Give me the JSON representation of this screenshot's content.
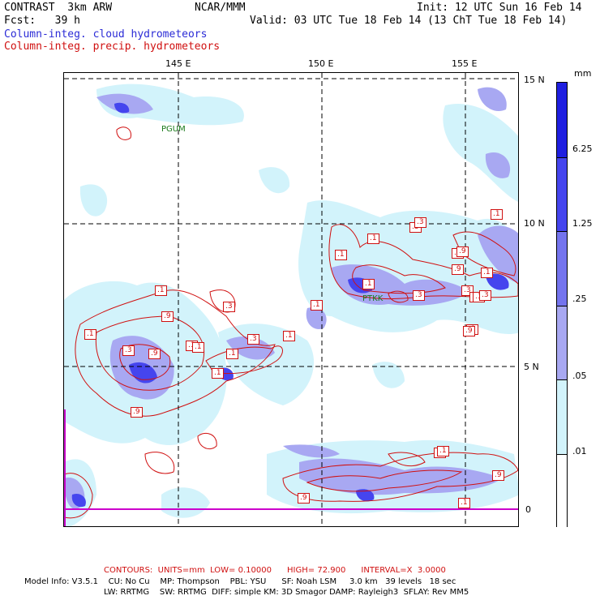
{
  "header": {
    "title": "CONTRAST  3km ARW",
    "org": "NCAR/MMM",
    "init": "Init: 12 UTC Sun 16 Feb 14",
    "fcst": "Fcst:   39 h",
    "valid": "Valid: 03 UTC Tue 18 Feb 14 (13 ChT Tue 18 Feb 14)",
    "field_cloud": "Column-integ. cloud hydrometeors",
    "field_precip": "Column-integ. precip. hydrometeors"
  },
  "map": {
    "lon_labels": [
      "145 E",
      "150 E",
      "155 E"
    ],
    "lat_labels": [
      "15 N",
      "10 N",
      "5 N",
      "0"
    ],
    "stations": [
      "PGUM",
      "PTKK"
    ],
    "contour_labels": [
      ".1",
      ".9",
      ".3",
      ".1",
      ".1",
      ".3",
      ".1",
      ".9",
      ".1",
      ".3",
      ".1",
      ".9",
      ".1",
      ".1",
      ".1",
      ".3",
      ".9",
      ".1",
      ".3",
      ".1",
      ".3",
      ".3",
      ".1",
      ".9",
      ".1",
      ".9",
      ".1",
      ".9",
      ".1",
      ".3",
      ".1",
      ".1",
      ".3",
      ".3",
      ".9",
      ".1"
    ]
  },
  "colorbar": {
    "units": "mm",
    "tick_labels": [
      "6.25",
      "1.25",
      ".25",
      ".05",
      ".01"
    ],
    "colors": [
      "#1f1fe0",
      "#4545ee",
      "#7474ee",
      "#a8a8f2",
      "#d2f3fb",
      "#ffffff"
    ]
  },
  "footer": {
    "contours": "CONTOURS:  UNITS=mm  LOW= 0.10000      HIGH= 72.900      INTERVAL=X  3.0000",
    "model_line1": "Model Info: V3.5.1    CU: No Cu    MP: Thompson    PBL: YSU      SF: Noah LSM     3.0 km   39 levels   18 sec",
    "model_line2": "LW: RRTMG    SW: RRTMG  DIFF: simple KM: 3D Smagor DAMP: Rayleigh3  SFLAY: Rev MM5"
  }
}
